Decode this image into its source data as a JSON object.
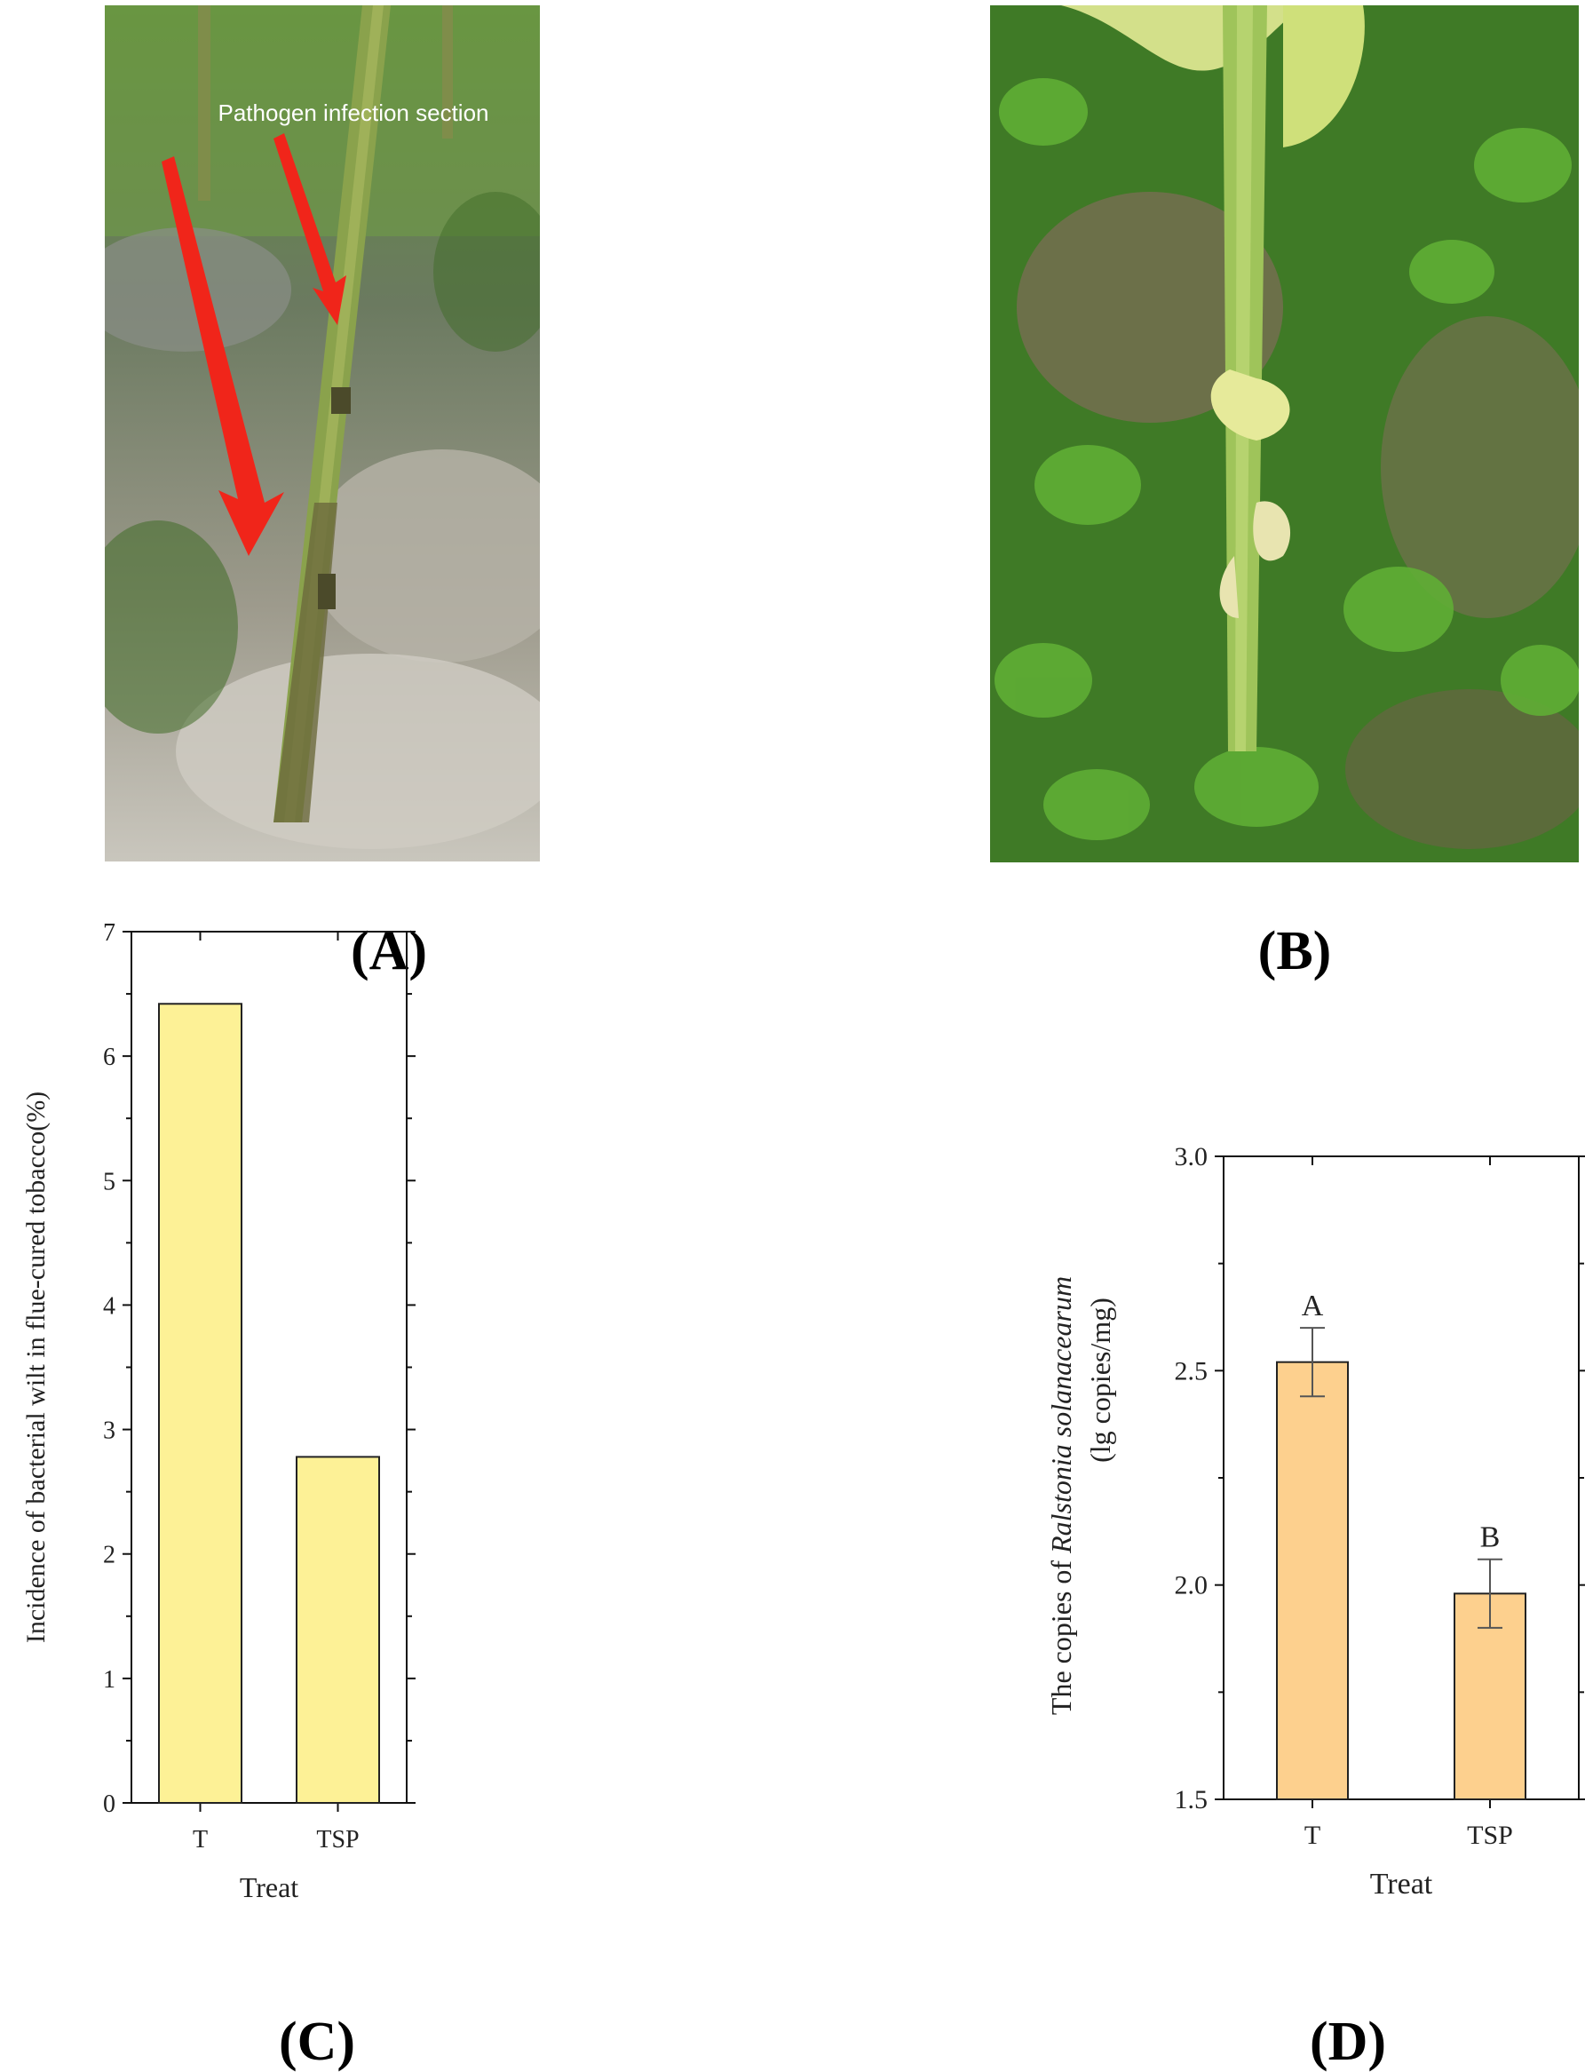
{
  "panels": {
    "A": {
      "label": "(A)",
      "annotation": "Pathogen infection section"
    },
    "B": {
      "label": "(B)"
    },
    "C": {
      "label": "(C)"
    },
    "D": {
      "label": "(D)"
    }
  },
  "colors": {
    "bar_C": "#fdf196",
    "bar_D": "#fdd08e",
    "arrow": "#f0251a",
    "foliage": "#4f8f2f",
    "soil": "#8c8878"
  },
  "chart_data": [
    {
      "type": "bar",
      "panel": "C",
      "categories": [
        "T",
        "TSP"
      ],
      "values": [
        6.42,
        2.78
      ],
      "xlabel": "Treat",
      "ylabel": "Incidence of bacterial wilt in flue-cured tobacco(%)",
      "ylim": [
        0,
        7
      ],
      "yticks": [
        "0",
        "1",
        "2",
        "3",
        "4",
        "5",
        "6",
        "7"
      ],
      "grid": false
    },
    {
      "type": "bar",
      "panel": "D",
      "categories": [
        "T",
        "TSP"
      ],
      "values": [
        2.52,
        1.98
      ],
      "errors": [
        0.08,
        0.08
      ],
      "significance": [
        "A",
        "B"
      ],
      "xlabel": "Treat",
      "ylabel_prefix": "The copies of ",
      "ylabel_italic": "Ralstonia solanacearum",
      "ylabel_line2": "(lg copies/mg)",
      "ylim": [
        1.5,
        3.0
      ],
      "yticks": [
        "1.5",
        "2.0",
        "2.5",
        "3.0"
      ],
      "grid": false
    }
  ]
}
